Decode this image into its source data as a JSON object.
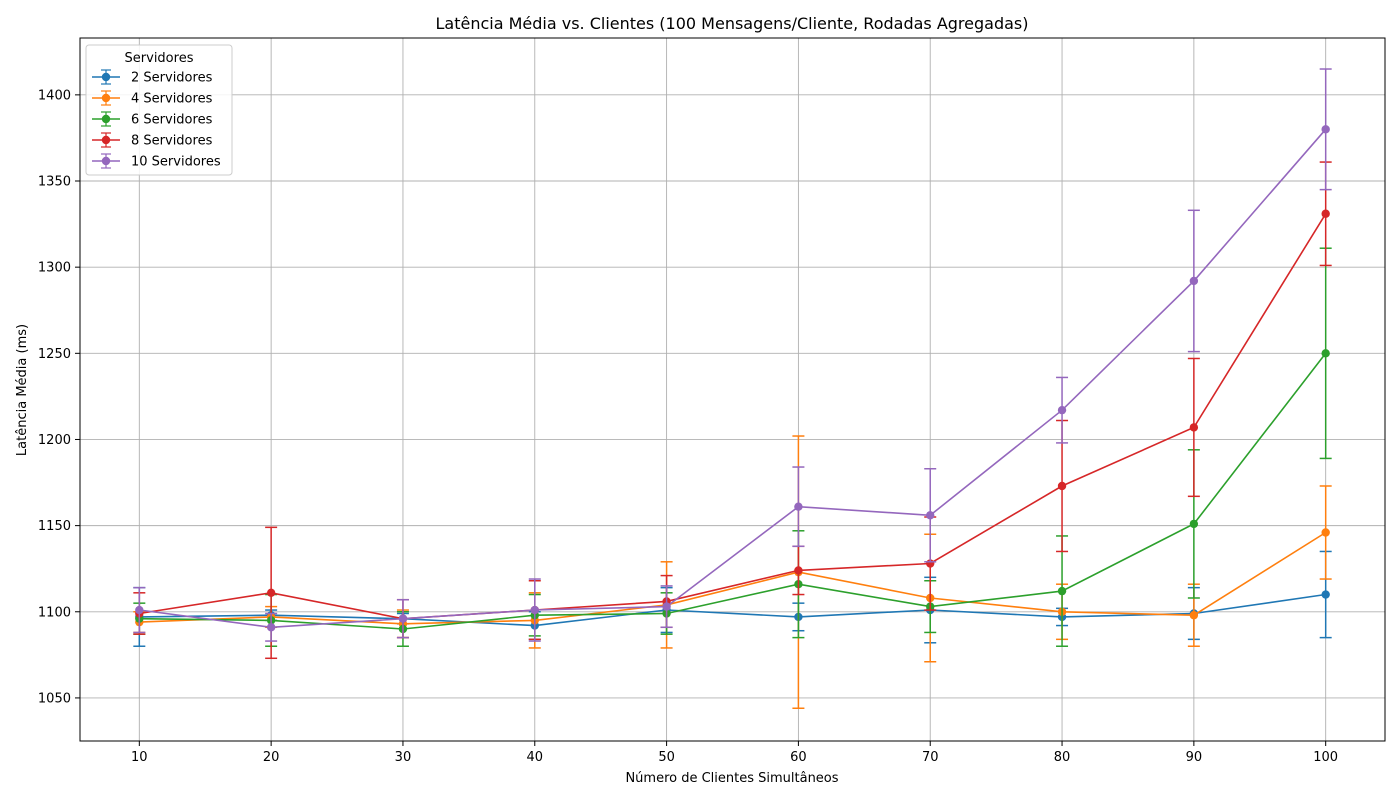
{
  "chart_data": {
    "type": "line",
    "title": "Latência Média vs. Clientes (100 Mensagens/Cliente, Rodadas Agregadas)",
    "xlabel": "Número de Clientes Simultâneos",
    "ylabel": "Latência Média (ms)",
    "x": [
      10,
      20,
      30,
      40,
      50,
      60,
      70,
      80,
      90,
      100
    ],
    "xlim": [
      5.5,
      104.5
    ],
    "ylim": [
      1025,
      1433
    ],
    "xticks": [
      10,
      20,
      30,
      40,
      50,
      60,
      70,
      80,
      90,
      100
    ],
    "yticks": [
      1050,
      1100,
      1150,
      1200,
      1250,
      1300,
      1350,
      1400
    ],
    "grid": true,
    "legend": {
      "title": "Servidores",
      "placement": "top-left"
    },
    "series": [
      {
        "name": "2 Servidores",
        "color": "#1f77b4",
        "values": [
          1097,
          1098,
          1096,
          1092,
          1101,
          1097,
          1101,
          1097,
          1099,
          1110
        ],
        "errors": [
          17,
          3,
          3,
          8,
          13,
          8,
          19,
          5,
          15,
          25
        ]
      },
      {
        "name": "4 Servidores",
        "color": "#ff7f0e",
        "values": [
          1094,
          1097,
          1093,
          1095,
          1104,
          1123,
          1108,
          1100,
          1098,
          1146
        ],
        "errors": [
          6,
          6,
          8,
          16,
          25,
          79,
          37,
          16,
          18,
          27
        ]
      },
      {
        "name": "6 Servidores",
        "color": "#2ca02c",
        "values": [
          1096,
          1095,
          1090,
          1098,
          1099,
          1116,
          1103,
          1112,
          1151,
          1250
        ],
        "errors": [
          9,
          15,
          10,
          12,
          12,
          31,
          15,
          32,
          43,
          61
        ]
      },
      {
        "name": "8 Servidores",
        "color": "#d62728",
        "values": [
          1099,
          1111,
          1096,
          1101,
          1106,
          1124,
          1128,
          1173,
          1207,
          1331
        ],
        "errors": [
          12,
          38,
          11,
          17,
          15,
          14,
          27,
          38,
          40,
          30
        ]
      },
      {
        "name": "10 Servidores",
        "color": "#9467bd",
        "values": [
          1101,
          1091,
          1096,
          1101,
          1103,
          1161,
          1156,
          1217,
          1292,
          1380
        ],
        "errors": [
          13,
          8,
          11,
          18,
          12,
          23,
          27,
          19,
          41,
          35
        ]
      }
    ]
  }
}
